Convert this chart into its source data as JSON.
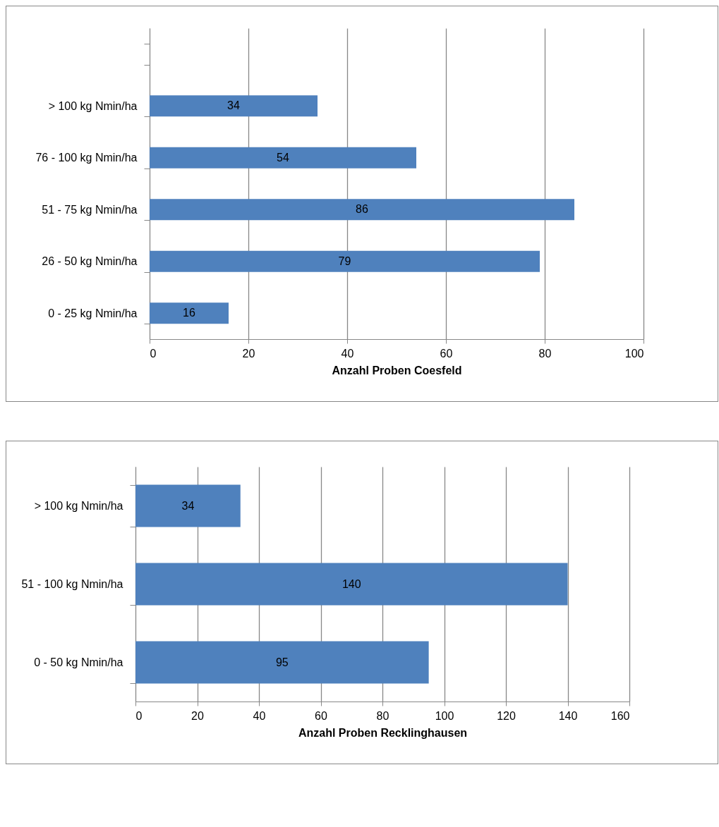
{
  "chart_data": [
    {
      "type": "bar",
      "orientation": "horizontal",
      "categories": [
        null,
        "> 100 kg Nmin/ha",
        "76 - 100 kg Nmin/ha",
        "51 - 75 kg Nmin/ha",
        "26 - 50 kg Nmin/ha",
        "0 - 25 kg Nmin/ha"
      ],
      "values": [
        null,
        34,
        54,
        86,
        79,
        16
      ],
      "color": "#4f81bd",
      "xlim": [
        0,
        100
      ],
      "xticks": [
        0,
        20,
        40,
        60,
        80,
        100
      ],
      "xlabel": "Anzahl Proben Coesfeld",
      "grid": "x",
      "data_labels": true
    },
    {
      "type": "bar",
      "orientation": "horizontal",
      "categories": [
        "> 100 kg Nmin/ha",
        "51 - 100 kg Nmin/ha",
        "0 - 50 kg Nmin/ha"
      ],
      "values": [
        34,
        140,
        95
      ],
      "color": "#4f81bd",
      "xlim": [
        0,
        160
      ],
      "xticks": [
        0,
        20,
        40,
        60,
        80,
        100,
        120,
        140,
        160
      ],
      "xlabel": "Anzahl Proben Recklinghausen",
      "grid": "x",
      "data_labels": true
    }
  ]
}
